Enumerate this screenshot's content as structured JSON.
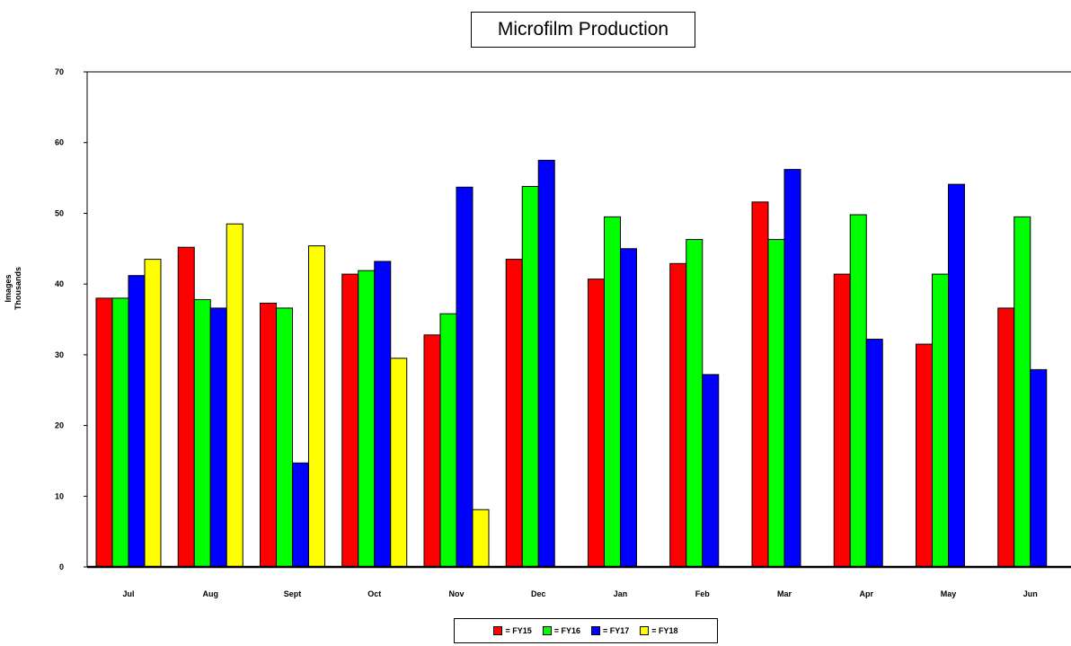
{
  "chart_data": {
    "type": "bar",
    "title": "Microfilm Production",
    "ylabel_line1": "Images",
    "ylabel_line2": "Thousands",
    "xlabel": "",
    "ylim": [
      0,
      70
    ],
    "yticks": [
      "0",
      "10",
      "20",
      "30",
      "40",
      "50",
      "60",
      "70"
    ],
    "categories": [
      "Jul",
      "Aug",
      "Sept",
      "Oct",
      "Nov",
      "Dec",
      "Jan",
      "Feb",
      "Mar",
      "Apr",
      "May",
      "Jun"
    ],
    "series": [
      {
        "name": "= FY15",
        "color": "#ff0000",
        "values": [
          38.0,
          45.2,
          37.3,
          41.4,
          32.8,
          43.5,
          40.7,
          42.9,
          51.6,
          41.4,
          31.5,
          36.6
        ]
      },
      {
        "name": "= FY16",
        "color": "#00ff00",
        "values": [
          38.0,
          37.8,
          36.6,
          41.9,
          35.8,
          53.8,
          49.5,
          46.3,
          46.3,
          49.8,
          41.4,
          49.5
        ]
      },
      {
        "name": "= FY17",
        "color": "#0000ff",
        "values": [
          41.2,
          36.6,
          14.7,
          43.2,
          53.7,
          57.5,
          45.0,
          27.2,
          56.2,
          32.2,
          54.1,
          27.9
        ]
      },
      {
        "name": "= FY18",
        "color": "#ffff00",
        "values": [
          43.5,
          48.5,
          45.4,
          29.5,
          8.1,
          null,
          null,
          null,
          null,
          null,
          null,
          null
        ]
      }
    ],
    "legend_position": "bottom-center",
    "grid": false
  }
}
